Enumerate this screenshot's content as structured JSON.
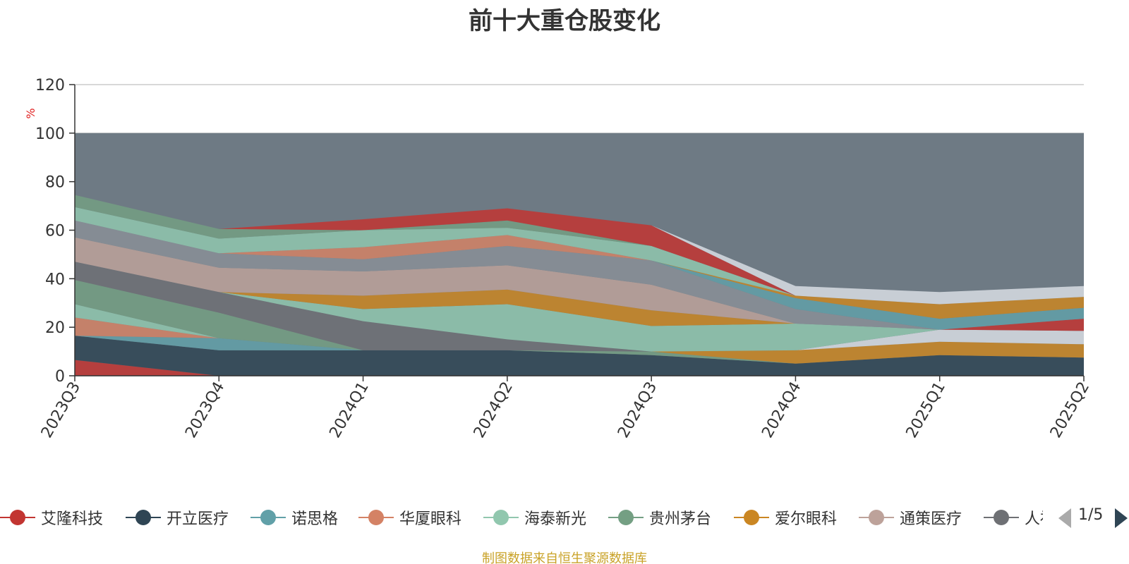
{
  "chart_data": {
    "type": "area",
    "title": "前十大重仓股变化",
    "ylabel": "%",
    "ylim": [
      0,
      120
    ],
    "yticks": [
      0,
      20,
      40,
      60,
      80,
      100,
      120
    ],
    "categories": [
      "2023Q3",
      "2023Q4",
      "2024Q1",
      "2024Q2",
      "2024Q3",
      "2024Q4",
      "2025Q1",
      "2025Q2"
    ],
    "background_color": "#6e7a84",
    "legend_placement": "bottom",
    "series": [
      {
        "name": "艾隆科技",
        "color": "#c23531",
        "values": [
          6.5,
          0,
          0,
          0,
          0,
          0,
          0,
          0
        ]
      },
      {
        "name": "开立医疗",
        "color": "#2f4554",
        "values": [
          10,
          10.5,
          10.5,
          10.5,
          8.5,
          5,
          8.5,
          7.5
        ]
      },
      {
        "name": "诺思格",
        "color": "#61a0a8",
        "values": [
          0,
          5,
          0,
          0,
          0,
          0,
          0,
          0
        ]
      },
      {
        "name": "华厦眼科",
        "color": "#d48265",
        "values": [
          7.5,
          0,
          0,
          0,
          0,
          0,
          0,
          0
        ]
      },
      {
        "name": "海泰新光",
        "color": "#91c7ae",
        "values": [
          5.5,
          0,
          0,
          0,
          0,
          0,
          0,
          0
        ]
      },
      {
        "name": "贵州茅台",
        "color": "#749f83",
        "values": [
          10,
          10.5,
          0,
          0,
          1.5,
          0,
          0,
          0
        ]
      },
      {
        "name": "爱尔眼科",
        "color": "#ca8622",
        "values": [
          0,
          0,
          0,
          0,
          0,
          5.5,
          5.5,
          5.5
        ]
      },
      {
        "name": "通策医疗",
        "color": "#bda29a",
        "values": [
          0,
          0,
          0,
          0,
          0,
          0,
          0,
          0
        ]
      },
      {
        "name": "人福医药",
        "color": "#6e7074",
        "values": [
          7.5,
          8.5,
          12,
          4.5,
          0,
          0,
          0,
          0
        ]
      },
      {
        "name": "",
        "color": "#d8dde3",
        "values": [
          0,
          0,
          0,
          0,
          0,
          0,
          5,
          5.5
        ]
      },
      {
        "name": "",
        "color": "#c23531",
        "values": [
          0,
          0,
          0,
          0,
          0,
          0,
          0,
          5
        ]
      },
      {
        "name": "",
        "color": "#91c7ae",
        "values": [
          0,
          0,
          5,
          14.5,
          10.5,
          11,
          0,
          0
        ]
      },
      {
        "name": "",
        "color": "#ca8622",
        "values": [
          0,
          0,
          5.5,
          6,
          6.5,
          0,
          0,
          0
        ]
      },
      {
        "name": "",
        "color": "#bda29a",
        "values": [
          10,
          10,
          10,
          10,
          10.5,
          0,
          0,
          0
        ]
      },
      {
        "name": "",
        "color": "#8a8f96",
        "values": [
          7,
          6,
          5,
          8,
          10,
          6,
          0,
          0
        ]
      },
      {
        "name": "",
        "color": "#61a0a8",
        "values": [
          0,
          0,
          0,
          0,
          0,
          4.5,
          4.5,
          4.5
        ]
      },
      {
        "name": "",
        "color": "#ca8622",
        "values": [
          0,
          0,
          0,
          0,
          0,
          1,
          6,
          4.5
        ]
      },
      {
        "name": "",
        "color": "#d48265",
        "values": [
          0,
          0,
          5,
          4.5,
          0,
          0,
          0,
          0
        ]
      },
      {
        "name": "",
        "color": "#91c7ae",
        "values": [
          5.5,
          6,
          7,
          3,
          6,
          0,
          0,
          0
        ]
      },
      {
        "name": "",
        "color": "#749f83",
        "values": [
          5,
          4,
          0,
          3,
          0,
          0,
          0,
          0
        ]
      },
      {
        "name": "",
        "color": "#c23531",
        "values": [
          0,
          0,
          4.5,
          5,
          8.5,
          0,
          0,
          0
        ]
      },
      {
        "name": "",
        "color": "#d8dde3",
        "values": [
          0,
          0,
          0,
          0,
          0,
          4,
          5,
          4.5
        ]
      }
    ]
  },
  "legend": {
    "page": "1/5"
  },
  "source_note": "制图数据来自恒生聚源数据库"
}
